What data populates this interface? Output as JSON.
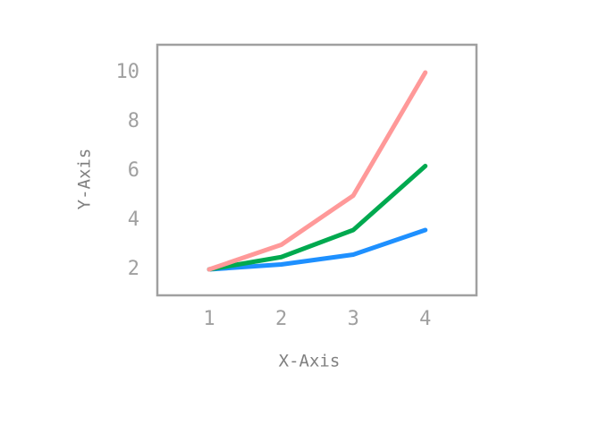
{
  "chart_data": {
    "type": "line",
    "x_label": "X-Axis",
    "y_label": "Y-Axis",
    "x": [
      1,
      2,
      3,
      4
    ],
    "series": [
      {
        "color": "#1e90ff",
        "values": [
          2,
          2.2,
          2.6,
          3.6
        ]
      },
      {
        "color": "#00a94f",
        "values": [
          2,
          2.5,
          3.6,
          6.2
        ]
      },
      {
        "color": "#ff9999",
        "values": [
          2,
          3,
          5,
          10
        ]
      }
    ],
    "xlim": [
      0.28,
      4.71
    ],
    "xticks": [
      1,
      2,
      3,
      4
    ],
    "ylim": [
      0.945,
      11.13
    ],
    "yticks": [
      2,
      4,
      6,
      8,
      10
    ],
    "grid": false
  }
}
